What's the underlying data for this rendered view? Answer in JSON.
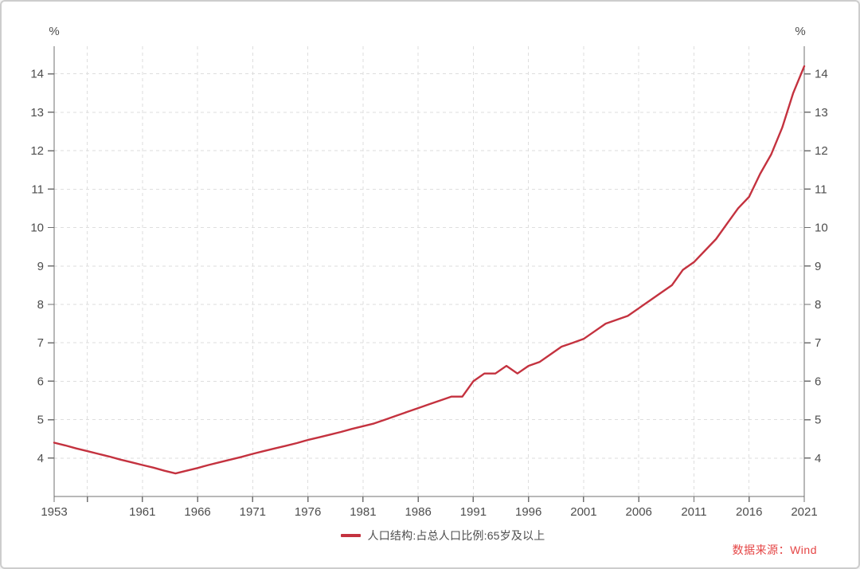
{
  "window": {
    "background": "#ffffff",
    "border_color": "#cdcdcd"
  },
  "chart": {
    "unit_label_left": "%",
    "unit_label_right": "%",
    "axis_color": "#707070",
    "grid_color": "#dedede",
    "tick_label_color": "#4d4d4d",
    "legend": {
      "label": "人口结构:占总人口比例:65岁及以上",
      "color": "#c4323f"
    },
    "source": {
      "label": "数据来源：Wind",
      "color": "#e54545"
    }
  },
  "chart_data": {
    "type": "line",
    "title": "",
    "ylabel_left": "%",
    "ylabel_right": "%",
    "xlim": [
      1953,
      2021
    ],
    "ylim": [
      3.0,
      14.72
    ],
    "grid": "dashed-both-directions",
    "legend_position": "bottom-center",
    "y_ticks": [
      4,
      5,
      6,
      7,
      8,
      9,
      10,
      11,
      12,
      13,
      14
    ],
    "x_ticks": [
      {
        "year": 1953,
        "label": "1953"
      },
      {
        "year": 1956,
        "label": ""
      },
      {
        "year": 1961,
        "label": "1961"
      },
      {
        "year": 1966,
        "label": "1966"
      },
      {
        "year": 1971,
        "label": "1971"
      },
      {
        "year": 1976,
        "label": "1976"
      },
      {
        "year": 1981,
        "label": "1981"
      },
      {
        "year": 1986,
        "label": "1986"
      },
      {
        "year": 1991,
        "label": "1991"
      },
      {
        "year": 1996,
        "label": "1996"
      },
      {
        "year": 2001,
        "label": "2001"
      },
      {
        "year": 2006,
        "label": "2006"
      },
      {
        "year": 2011,
        "label": "2011"
      },
      {
        "year": 2016,
        "label": "2016"
      },
      {
        "year": 2021,
        "label": "2021"
      }
    ],
    "series": [
      {
        "name": "人口结构:占总人口比例:65岁及以上",
        "color": "#c4323f",
        "line_width": 2.4,
        "x": [
          1953,
          1954,
          1955,
          1956,
          1957,
          1958,
          1959,
          1960,
          1961,
          1962,
          1963,
          1964,
          1965,
          1966,
          1967,
          1968,
          1969,
          1970,
          1971,
          1972,
          1973,
          1974,
          1975,
          1976,
          1977,
          1978,
          1979,
          1980,
          1981,
          1982,
          1983,
          1984,
          1985,
          1986,
          1987,
          1988,
          1989,
          1990,
          1991,
          1992,
          1993,
          1994,
          1995,
          1996,
          1997,
          1998,
          1999,
          2000,
          2001,
          2002,
          2003,
          2004,
          2005,
          2006,
          2007,
          2008,
          2009,
          2010,
          2011,
          2012,
          2013,
          2014,
          2015,
          2016,
          2017,
          2018,
          2019,
          2020,
          2021
        ],
        "values": [
          4.4,
          4.33,
          4.25,
          4.18,
          4.11,
          4.04,
          3.96,
          3.89,
          3.82,
          3.75,
          3.67,
          3.6,
          3.67,
          3.74,
          3.82,
          3.89,
          3.96,
          4.03,
          4.11,
          4.18,
          4.25,
          4.32,
          4.39,
          4.47,
          4.54,
          4.61,
          4.68,
          4.76,
          4.83,
          4.9,
          5.0,
          5.1,
          5.2,
          5.3,
          5.4,
          5.5,
          5.6,
          5.6,
          6.0,
          6.2,
          6.2,
          6.4,
          6.2,
          6.4,
          6.5,
          6.7,
          6.9,
          7.0,
          7.1,
          7.3,
          7.5,
          7.6,
          7.7,
          7.9,
          8.1,
          8.3,
          8.5,
          8.9,
          9.1,
          9.4,
          9.7,
          10.1,
          10.5,
          10.8,
          11.4,
          11.9,
          12.6,
          13.5,
          14.2
        ]
      }
    ],
    "source": "数据来源：Wind"
  }
}
